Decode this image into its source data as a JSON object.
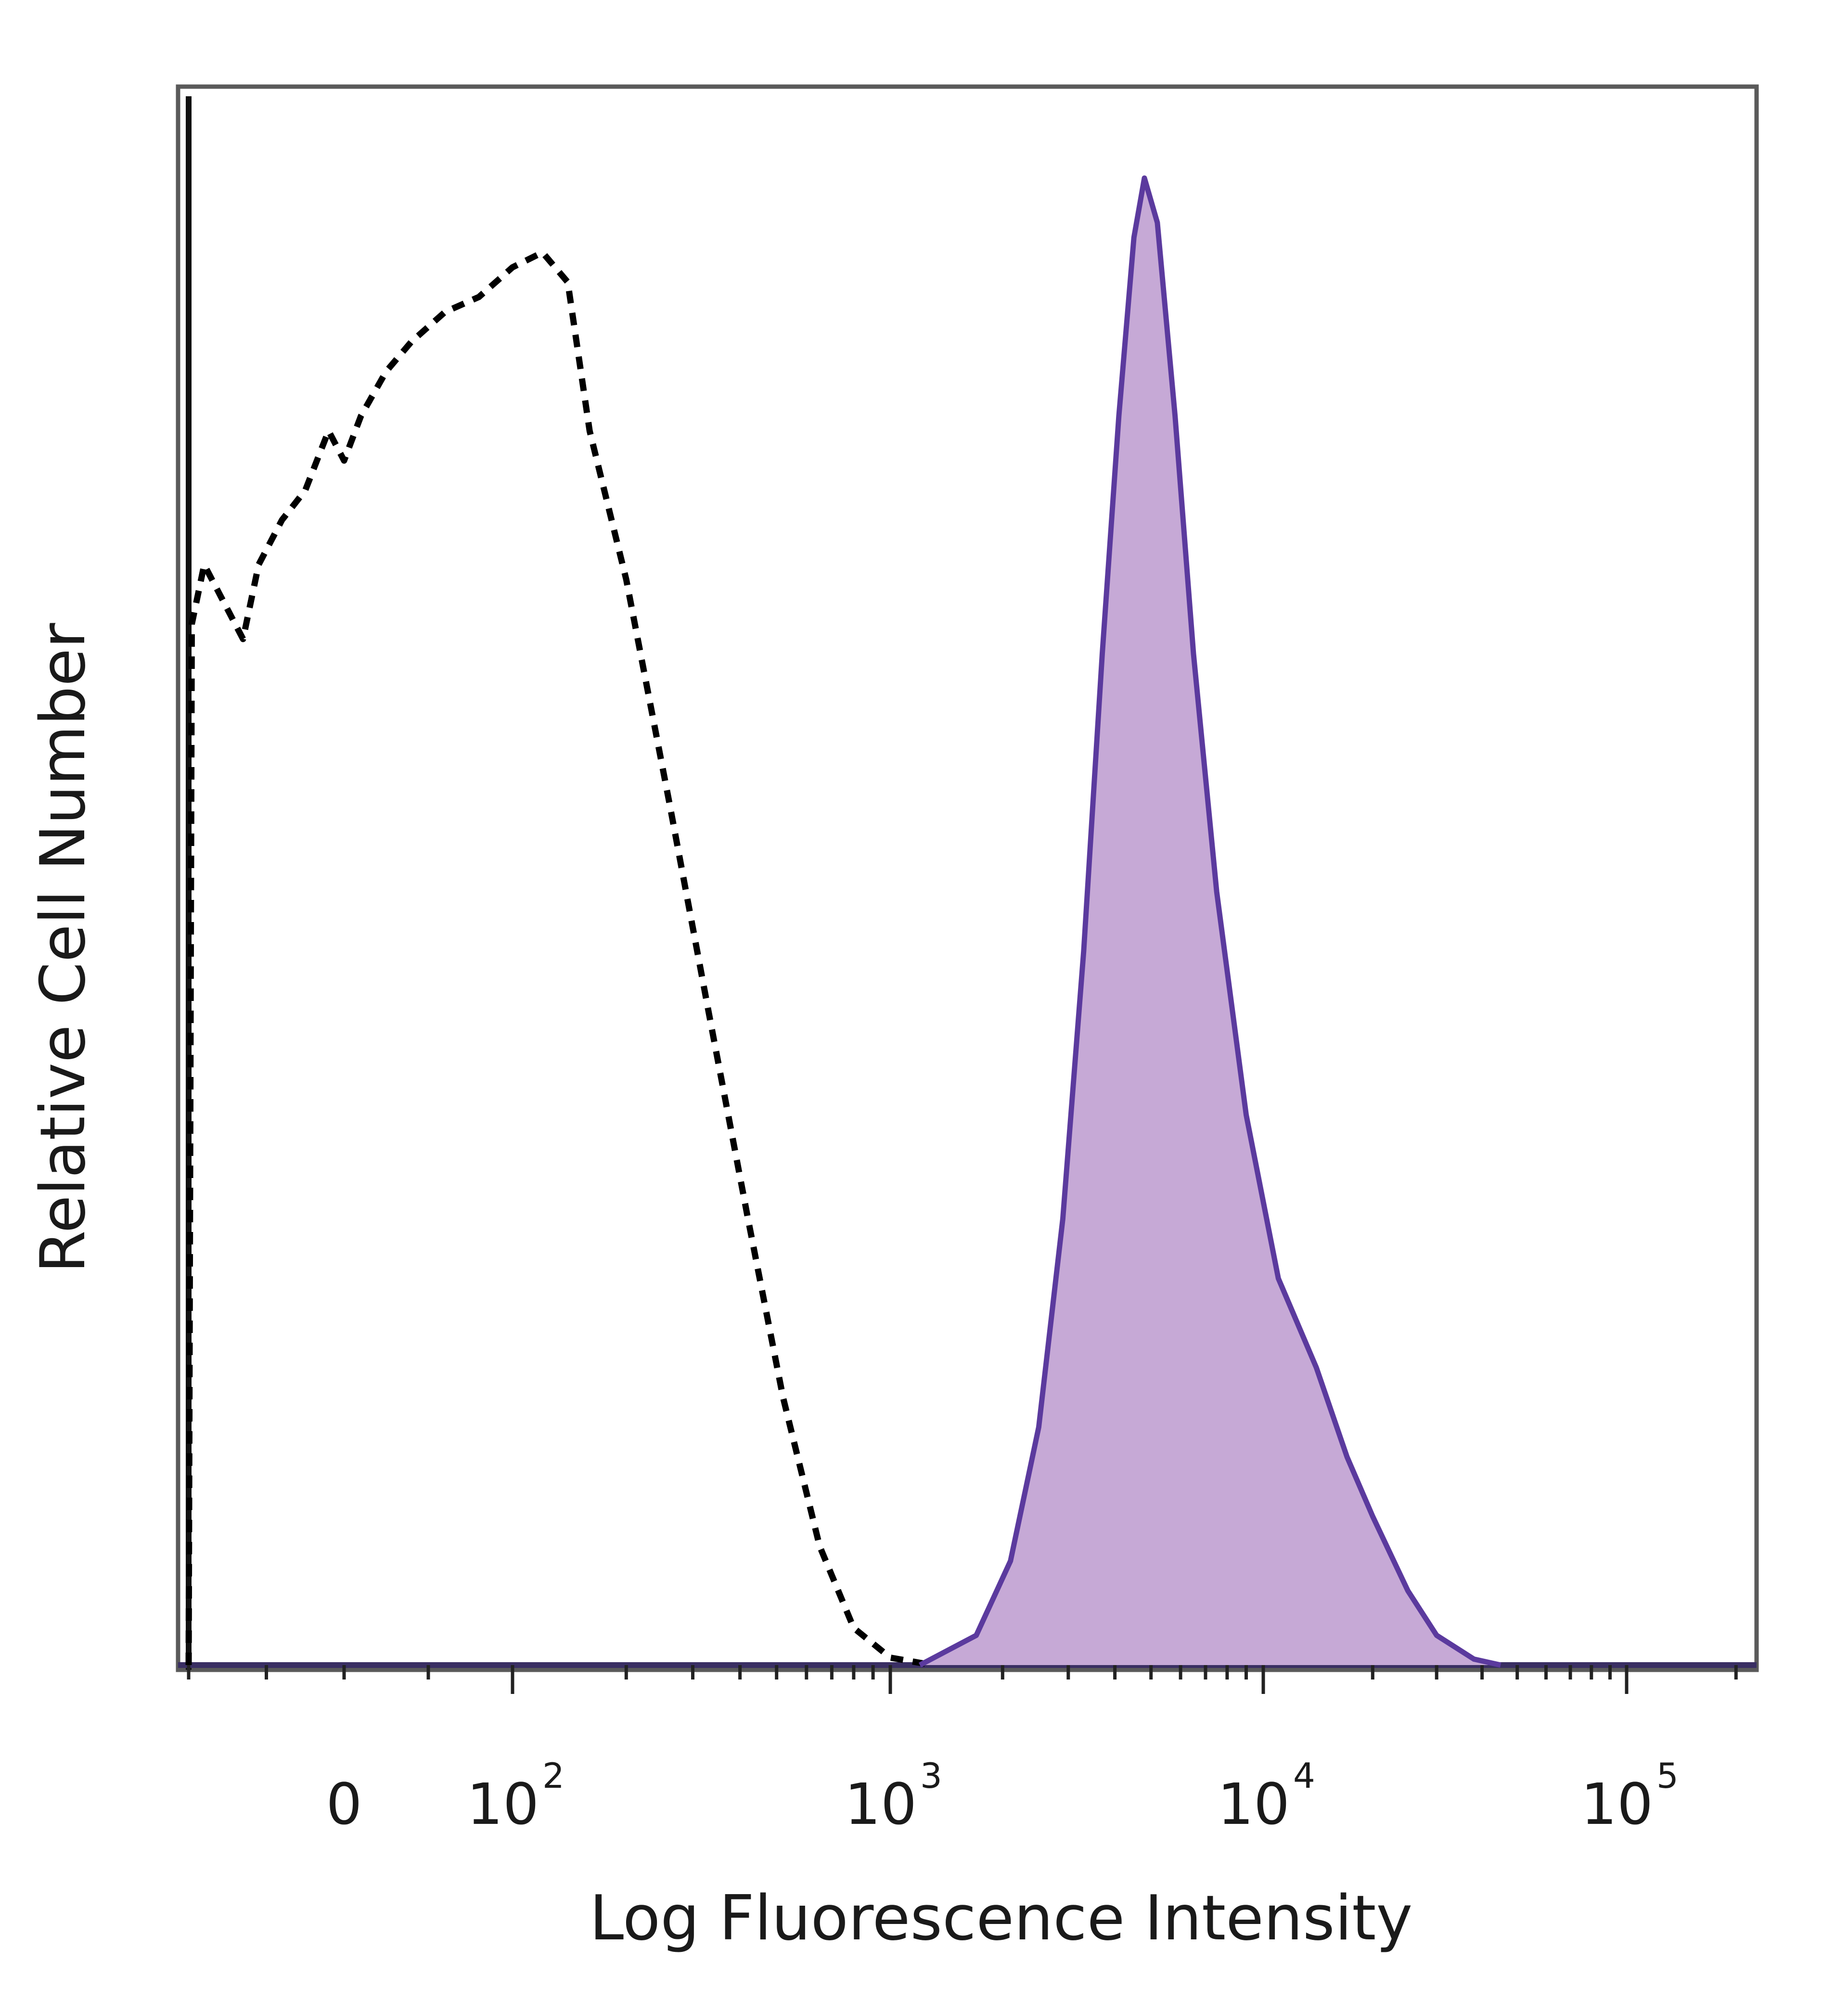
{
  "chart_data": {
    "type": "area",
    "xlabel": "Log Fluorescence Intensity",
    "ylabel": "Relative Cell Number",
    "x_scale": "biexponential",
    "xlim": [
      -100,
      250000
    ],
    "ylim": [
      0,
      100
    ],
    "x_tick_labels": [
      {
        "value": 0,
        "base": "0",
        "exp": ""
      },
      {
        "value": 100,
        "base": "10",
        "exp": "2"
      },
      {
        "value": 1000,
        "base": "10",
        "exp": "3"
      },
      {
        "value": 10000,
        "base": "10",
        "exp": "4"
      },
      {
        "value": 100000,
        "base": "10",
        "exp": "5"
      }
    ],
    "grid": false,
    "legend": "none",
    "series": [
      {
        "style": "dashed",
        "color": "#000000",
        "fill": "none",
        "points": [
          [
            -100,
            0
          ],
          [
            -98,
            70
          ],
          [
            -90,
            74
          ],
          [
            -80,
            72
          ],
          [
            -65,
            69
          ],
          [
            -55,
            74
          ],
          [
            -40,
            77
          ],
          [
            -25,
            79
          ],
          [
            -10,
            83
          ],
          [
            0,
            81
          ],
          [
            10,
            84
          ],
          [
            25,
            87
          ],
          [
            40,
            89
          ],
          [
            60,
            91
          ],
          [
            80,
            92
          ],
          [
            100,
            94
          ],
          [
            120,
            95
          ],
          [
            140,
            93
          ],
          [
            160,
            83
          ],
          [
            200,
            73
          ],
          [
            260,
            58
          ],
          [
            330,
            44
          ],
          [
            420,
            30
          ],
          [
            520,
            18
          ],
          [
            650,
            8
          ],
          [
            800,
            2.5
          ],
          [
            1000,
            0.5
          ],
          [
            1300,
            0
          ]
        ]
      },
      {
        "style": "solid",
        "color": "#5b3a9e",
        "fill": "#c6a9d6",
        "points": [
          [
            1200,
            0
          ],
          [
            1700,
            2
          ],
          [
            2100,
            7
          ],
          [
            2500,
            16
          ],
          [
            2900,
            30
          ],
          [
            3300,
            48
          ],
          [
            3700,
            68
          ],
          [
            4100,
            84
          ],
          [
            4500,
            96
          ],
          [
            4800,
            100
          ],
          [
            5200,
            97
          ],
          [
            5800,
            84
          ],
          [
            6500,
            68
          ],
          [
            7500,
            52
          ],
          [
            9000,
            37
          ],
          [
            11000,
            26
          ],
          [
            14000,
            20
          ],
          [
            17000,
            14
          ],
          [
            20000,
            10
          ],
          [
            25000,
            5
          ],
          [
            30000,
            2
          ],
          [
            38000,
            0.4
          ],
          [
            45000,
            0
          ]
        ]
      }
    ]
  }
}
